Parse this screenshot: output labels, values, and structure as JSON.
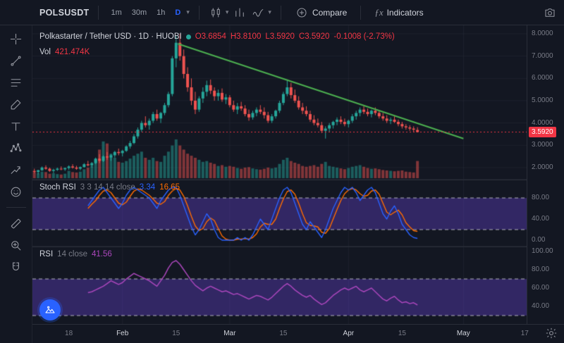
{
  "toolbar": {
    "symbol": "POLSUSDT",
    "timeframes": [
      "1m",
      "30m",
      "1h",
      "D"
    ],
    "active_timeframe": "D",
    "compare_label": "Compare",
    "indicators_label": "Indicators",
    "indicators_fx": "ƒx"
  },
  "legend": {
    "title": "Polkastarter / Tether USD · 1D · HUOBI",
    "ohlc": {
      "o": "O3.6854",
      "h": "H3.8100",
      "l": "L3.5920",
      "c": "C3.5920",
      "change": "-0.1008 (-2.73%)"
    },
    "vol_label": "Vol",
    "vol_value": "421.474K"
  },
  "stoch_legend": {
    "name": "Stoch RSI",
    "params": "3 3 14 14 close",
    "k_value": "3.34",
    "d_value": "16.65"
  },
  "rsi_legend": {
    "name": "RSI",
    "params": "14 close",
    "value": "41.56"
  },
  "axes": {
    "main_price_labels": [
      {
        "text": "8.0000",
        "v": 8
      },
      {
        "text": "7.0000",
        "v": 7
      },
      {
        "text": "6.0000",
        "v": 6
      },
      {
        "text": "5.0000",
        "v": 5
      },
      {
        "text": "4.0000",
        "v": 4
      },
      {
        "text": "3.0000",
        "v": 3
      },
      {
        "text": "2.0000",
        "v": 2
      }
    ],
    "price_badge": {
      "text": "3.5920",
      "v": 3.592,
      "color": "#f23645"
    },
    "stoch_labels": [
      {
        "text": "80.00",
        "v": 80
      },
      {
        "text": "40.00",
        "v": 40
      },
      {
        "text": "0.00",
        "v": 0
      }
    ],
    "rsi_labels": [
      {
        "text": "100.00",
        "v": 100
      },
      {
        "text": "80.00",
        "v": 80
      },
      {
        "text": "60.00",
        "v": 60
      },
      {
        "text": "40.00",
        "v": 40
      }
    ],
    "time_ticks": [
      {
        "slot": 9,
        "label": "18",
        "major": false
      },
      {
        "slot": 23,
        "label": "Feb",
        "major": true
      },
      {
        "slot": 37,
        "label": "15",
        "major": false
      },
      {
        "slot": 51,
        "label": "Mar",
        "major": true
      },
      {
        "slot": 65,
        "label": "15",
        "major": false
      },
      {
        "slot": 82,
        "label": "Apr",
        "major": true
      },
      {
        "slot": 96,
        "label": "15",
        "major": false
      },
      {
        "slot": 112,
        "label": "May",
        "major": true
      },
      {
        "slot": 128,
        "label": "17",
        "major": false
      }
    ]
  },
  "colors": {
    "bg": "#131722",
    "up": "#26a69a",
    "down": "#ef5350",
    "vol_up": "rgba(38,166,154,0.5)",
    "vol_down": "rgba(239,83,80,0.5)",
    "trend": "#4caf50",
    "price_line": "#f23645",
    "stoch_k": "#2962ff",
    "stoch_d": "#ff6d00",
    "rsi": "#ab47bc",
    "band": "rgba(124,77,255,0.30)",
    "band_edge": "rgba(255,255,255,0.65)",
    "grid": "rgba(42,46,57,0.5)",
    "accent": "#2962ff"
  },
  "chart_data": {
    "type": "candlestick+indicators",
    "slots": 129,
    "panes": {
      "main": {
        "price_min": 1.46,
        "price_max": 8.38,
        "vol_max": 1000
      },
      "stoch": {
        "min": -12,
        "max": 114.7,
        "band": [
          20,
          80
        ]
      },
      "rsi": {
        "min": 20.8,
        "max": 105.4,
        "band": [
          30,
          70
        ]
      }
    },
    "price_line_value": 3.592,
    "trendline": {
      "from_slot": 37.5,
      "from_price": 7.55,
      "to_slot": 112,
      "to_price": 3.3
    },
    "candles": [
      [
        1.85,
        1.95,
        1.75,
        1.8,
        140
      ],
      [
        1.8,
        1.9,
        1.7,
        1.88,
        120
      ],
      [
        1.88,
        2.05,
        1.85,
        2.0,
        160
      ],
      [
        2.0,
        2.1,
        1.9,
        1.95,
        150
      ],
      [
        1.95,
        2.0,
        1.8,
        1.85,
        110
      ],
      [
        1.85,
        1.95,
        1.75,
        1.9,
        120
      ],
      [
        1.9,
        2.0,
        1.85,
        1.95,
        100
      ],
      [
        1.95,
        2.05,
        1.88,
        1.92,
        90
      ],
      [
        1.92,
        2.0,
        1.85,
        1.98,
        110
      ],
      [
        1.98,
        2.1,
        1.9,
        2.05,
        180
      ],
      [
        2.05,
        2.15,
        1.95,
        2.0,
        150
      ],
      [
        2.0,
        2.08,
        1.9,
        1.95,
        140
      ],
      [
        1.95,
        2.05,
        1.88,
        2.02,
        160
      ],
      [
        2.02,
        2.2,
        2.0,
        2.15,
        220
      ],
      [
        2.15,
        2.3,
        2.05,
        2.1,
        260
      ],
      [
        2.1,
        2.25,
        2.0,
        2.2,
        300
      ],
      [
        2.2,
        2.45,
        2.15,
        2.4,
        450
      ],
      [
        2.4,
        2.6,
        2.2,
        2.3,
        700
      ],
      [
        2.3,
        2.55,
        2.25,
        2.5,
        900
      ],
      [
        2.5,
        2.7,
        2.35,
        2.45,
        850
      ],
      [
        2.45,
        2.6,
        2.3,
        2.55,
        600
      ],
      [
        2.55,
        2.75,
        2.45,
        2.7,
        500
      ],
      [
        2.7,
        2.85,
        2.55,
        2.65,
        400
      ],
      [
        2.65,
        2.8,
        2.5,
        2.75,
        380
      ],
      [
        2.75,
        3.0,
        2.7,
        2.95,
        420
      ],
      [
        2.95,
        3.2,
        2.85,
        3.1,
        480
      ],
      [
        3.1,
        3.5,
        3.05,
        3.4,
        550
      ],
      [
        3.4,
        3.8,
        3.3,
        3.7,
        600
      ],
      [
        3.7,
        4.1,
        3.6,
        4.0,
        650
      ],
      [
        4.0,
        4.3,
        3.8,
        3.9,
        500
      ],
      [
        3.9,
        4.2,
        3.7,
        4.1,
        450
      ],
      [
        4.1,
        4.5,
        4.0,
        4.4,
        500
      ],
      [
        4.4,
        4.6,
        4.1,
        4.2,
        420
      ],
      [
        4.2,
        4.5,
        4.0,
        4.45,
        400
      ],
      [
        4.45,
        4.9,
        4.35,
        4.8,
        550
      ],
      [
        4.8,
        5.4,
        4.7,
        5.3,
        650
      ],
      [
        5.3,
        7.0,
        5.2,
        6.9,
        800
      ],
      [
        6.9,
        7.9,
        6.5,
        7.6,
        950
      ],
      [
        7.6,
        8.0,
        6.8,
        7.0,
        800
      ],
      [
        7.0,
        7.3,
        6.0,
        6.2,
        700
      ],
      [
        6.2,
        6.5,
        5.4,
        5.6,
        600
      ],
      [
        5.6,
        6.0,
        4.8,
        5.0,
        550
      ],
      [
        5.0,
        5.4,
        4.4,
        4.6,
        500
      ],
      [
        4.6,
        5.2,
        4.5,
        5.1,
        450
      ],
      [
        5.1,
        5.6,
        4.9,
        5.4,
        400
      ],
      [
        5.4,
        5.9,
        5.2,
        5.7,
        420
      ],
      [
        5.7,
        5.95,
        5.3,
        5.45,
        380
      ],
      [
        5.45,
        5.6,
        5.0,
        5.2,
        350
      ],
      [
        5.2,
        5.5,
        5.0,
        5.35,
        300
      ],
      [
        5.35,
        5.55,
        4.95,
        5.05,
        320
      ],
      [
        5.05,
        5.3,
        4.85,
        5.15,
        280
      ],
      [
        5.15,
        5.25,
        4.7,
        4.8,
        300
      ],
      [
        4.8,
        5.0,
        4.5,
        4.6,
        280
      ],
      [
        4.6,
        4.9,
        4.4,
        4.75,
        250
      ],
      [
        4.75,
        4.95,
        4.55,
        4.65,
        230
      ],
      [
        4.65,
        4.8,
        4.3,
        4.4,
        260
      ],
      [
        4.4,
        4.6,
        4.1,
        4.25,
        270
      ],
      [
        4.25,
        4.55,
        4.15,
        4.45,
        240
      ],
      [
        4.45,
        4.7,
        4.3,
        4.6,
        220
      ],
      [
        4.6,
        4.8,
        4.4,
        4.5,
        210
      ],
      [
        4.5,
        4.7,
        4.2,
        4.35,
        230
      ],
      [
        4.35,
        4.5,
        4.0,
        4.1,
        260
      ],
      [
        4.1,
        4.4,
        4.0,
        4.3,
        240
      ],
      [
        4.3,
        4.6,
        4.2,
        4.55,
        260
      ],
      [
        4.55,
        5.0,
        4.45,
        4.9,
        350
      ],
      [
        4.9,
        5.4,
        4.8,
        5.3,
        450
      ],
      [
        5.3,
        5.95,
        5.2,
        5.6,
        500
      ],
      [
        5.6,
        5.8,
        5.1,
        5.25,
        420
      ],
      [
        5.25,
        5.5,
        4.9,
        5.0,
        380
      ],
      [
        5.0,
        5.2,
        4.6,
        4.7,
        350
      ],
      [
        4.7,
        4.9,
        4.4,
        4.55,
        300
      ],
      [
        4.55,
        4.75,
        4.3,
        4.4,
        280
      ],
      [
        4.4,
        4.55,
        4.05,
        4.15,
        300
      ],
      [
        4.15,
        4.35,
        3.9,
        4.0,
        320
      ],
      [
        4.0,
        4.2,
        3.8,
        3.9,
        280
      ],
      [
        3.9,
        4.05,
        3.55,
        3.65,
        350
      ],
      [
        3.65,
        3.85,
        3.3,
        3.75,
        400
      ],
      [
        3.75,
        4.0,
        3.6,
        3.9,
        300
      ],
      [
        3.9,
        4.1,
        3.75,
        4.05,
        280
      ],
      [
        4.05,
        4.25,
        3.9,
        4.15,
        260
      ],
      [
        4.15,
        4.3,
        3.95,
        4.05,
        240
      ],
      [
        4.05,
        4.2,
        3.85,
        3.95,
        220
      ],
      [
        3.95,
        4.15,
        3.8,
        4.1,
        250
      ],
      [
        4.1,
        4.4,
        4.0,
        4.3,
        280
      ],
      [
        4.3,
        4.55,
        4.15,
        4.45,
        300
      ],
      [
        4.45,
        4.7,
        4.3,
        4.6,
        320
      ],
      [
        4.6,
        4.75,
        4.4,
        4.5,
        280
      ],
      [
        4.5,
        4.65,
        4.3,
        4.4,
        250
      ],
      [
        4.4,
        4.6,
        4.25,
        4.55,
        230
      ],
      [
        4.55,
        4.7,
        4.35,
        4.45,
        240
      ],
      [
        4.45,
        4.55,
        4.2,
        4.3,
        220
      ],
      [
        4.3,
        4.45,
        4.1,
        4.2,
        200
      ],
      [
        4.2,
        4.35,
        4.0,
        4.1,
        190
      ],
      [
        4.1,
        4.25,
        3.95,
        4.15,
        180
      ],
      [
        4.15,
        4.3,
        4.0,
        4.05,
        170
      ],
      [
        4.05,
        4.15,
        3.85,
        3.95,
        180
      ],
      [
        3.95,
        4.05,
        3.75,
        3.85,
        190
      ],
      [
        3.85,
        3.95,
        3.7,
        3.8,
        160
      ],
      [
        3.8,
        3.9,
        3.65,
        3.75,
        150
      ],
      [
        3.75,
        3.85,
        3.6,
        3.7,
        140
      ],
      [
        3.6854,
        3.81,
        3.592,
        3.592,
        421.474
      ]
    ],
    "stoch_k": [
      null,
      null,
      null,
      null,
      null,
      null,
      null,
      null,
      null,
      null,
      null,
      null,
      null,
      null,
      65,
      75,
      85,
      95,
      100,
      90,
      80,
      70,
      60,
      70,
      85,
      95,
      100,
      95,
      90,
      85,
      80,
      70,
      60,
      75,
      85,
      95,
      100,
      100,
      85,
      65,
      45,
      25,
      10,
      20,
      35,
      50,
      40,
      20,
      5,
      0,
      0,
      0,
      0,
      5,
      0,
      5,
      0,
      10,
      25,
      40,
      30,
      20,
      40,
      60,
      80,
      95,
      100,
      90,
      70,
      50,
      30,
      20,
      35,
      25,
      15,
      5,
      20,
      40,
      60,
      75,
      90,
      100,
      95,
      100,
      90,
      75,
      85,
      95,
      100,
      90,
      70,
      50,
      40,
      55,
      65,
      50,
      30,
      20,
      10,
      5,
      3.34
    ],
    "stoch_d": [
      null,
      null,
      null,
      null,
      null,
      null,
      null,
      null,
      null,
      null,
      null,
      null,
      null,
      null,
      60,
      68,
      75,
      85,
      93,
      95,
      90,
      80,
      70,
      67,
      72,
      83,
      93,
      97,
      95,
      90,
      85,
      78,
      70,
      68,
      73,
      85,
      93,
      98,
      95,
      83,
      65,
      45,
      27,
      18,
      22,
      35,
      42,
      37,
      22,
      8,
      2,
      0,
      0,
      2,
      2,
      3,
      2,
      5,
      12,
      25,
      32,
      30,
      30,
      40,
      60,
      78,
      92,
      95,
      87,
      70,
      50,
      33,
      28,
      27,
      25,
      15,
      13,
      22,
      40,
      58,
      75,
      88,
      95,
      98,
      95,
      88,
      83,
      85,
      93,
      95,
      87,
      70,
      53,
      48,
      53,
      57,
      48,
      33,
      25,
      18,
      16.65
    ],
    "rsi": [
      null,
      null,
      null,
      null,
      null,
      null,
      null,
      null,
      null,
      null,
      null,
      null,
      null,
      null,
      55,
      56,
      58,
      60,
      62,
      65,
      68,
      66,
      64,
      66,
      70,
      73,
      76,
      74,
      72,
      70,
      68,
      65,
      62,
      68,
      74,
      82,
      88,
      90,
      86,
      80,
      74,
      68,
      63,
      60,
      57,
      60,
      62,
      60,
      58,
      56,
      57,
      55,
      53,
      54,
      52,
      50,
      48,
      50,
      52,
      51,
      49,
      47,
      50,
      54,
      58,
      62,
      65,
      62,
      58,
      55,
      52,
      50,
      52,
      48,
      45,
      42,
      44,
      48,
      52,
      55,
      58,
      60,
      58,
      60,
      62,
      58,
      56,
      58,
      60,
      56,
      52,
      48,
      46,
      49,
      51,
      47,
      44,
      45,
      43,
      44,
      41.56
    ]
  }
}
